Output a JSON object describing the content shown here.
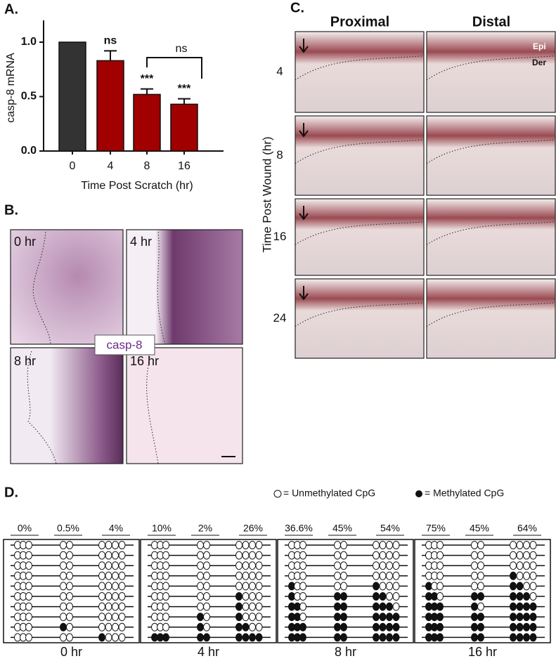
{
  "chart_data": {
    "type": "bar",
    "title": "A.",
    "categories": [
      "0",
      "4",
      "8",
      "16"
    ],
    "values": [
      1.0,
      0.83,
      0.52,
      0.43
    ],
    "errors": [
      0,
      0.09,
      0.05,
      0.05
    ],
    "colors": [
      "#333333",
      "#a00000",
      "#a00000",
      "#a00000"
    ],
    "ylim": [
      0,
      1.2
    ],
    "yticks": [
      {
        "value": 0,
        "label": "0.0"
      },
      {
        "value": 0.5,
        "label": "0.5"
      },
      {
        "value": 1.0,
        "label": "1.0"
      }
    ],
    "ylabel": "casp-8 mRNA",
    "xlabel": "Time Post Scratch (hr)",
    "bar_annotations": [
      null,
      "ns",
      "***",
      "***"
    ],
    "bracket_annotation": "ns"
  },
  "panel_b": {
    "title": "B.",
    "images": [
      "0 hr",
      "4 hr",
      "8 hr",
      "16 hr"
    ],
    "stain": "casp-8"
  },
  "panel_c": {
    "title": "C.",
    "columns": [
      "Proximal",
      "Distal"
    ],
    "rows": [
      "4",
      "8",
      "16",
      "24"
    ],
    "ylabel": "Time Post Wound (hr)",
    "layer_labels": [
      "Epi",
      "Der"
    ]
  },
  "panel_d": {
    "title": "D.",
    "legend": [
      "= Unmethylated CpG",
      "= Methylated CpG"
    ],
    "groups": [
      {
        "label": "0 hr",
        "percents": [
          "0%",
          "0.5%",
          "4%"
        ],
        "methylated": [
          [
            0,
            0,
            0,
            0,
            0,
            0,
            0,
            0,
            0,
            0
          ],
          [
            0,
            0,
            0,
            0,
            0,
            0,
            0,
            0,
            1,
            0
          ],
          [
            0,
            0,
            0,
            0,
            0,
            0,
            0,
            0,
            0,
            1
          ]
        ]
      },
      {
        "label": "4 hr",
        "percents": [
          "10%",
          "2%",
          "26%"
        ],
        "methylated": [
          [
            0,
            0,
            0,
            0,
            0,
            0,
            0,
            0,
            0,
            3
          ],
          [
            0,
            0,
            0,
            0,
            0,
            0,
            0,
            1,
            1,
            2
          ],
          [
            0,
            0,
            0,
            0,
            0,
            1,
            1,
            1,
            2,
            4
          ]
        ]
      },
      {
        "label": "8 hr",
        "percents": [
          "36.6%",
          "45%",
          "54%"
        ],
        "methylated": [
          [
            0,
            0,
            0,
            0,
            1,
            1,
            2,
            2,
            3,
            3
          ],
          [
            0,
            0,
            0,
            0,
            0,
            2,
            2,
            2,
            2,
            2
          ],
          [
            0,
            0,
            0,
            0,
            1,
            2,
            3,
            4,
            4,
            4
          ]
        ]
      },
      {
        "label": "16 hr",
        "percents": [
          "75%",
          "45%",
          "64%"
        ],
        "methylated": [
          [
            0,
            0,
            0,
            0,
            1,
            2,
            3,
            3,
            3,
            3
          ],
          [
            0,
            0,
            0,
            0,
            0,
            2,
            1,
            2,
            2,
            2
          ],
          [
            0,
            0,
            0,
            1,
            2,
            3,
            4,
            4,
            4,
            4
          ]
        ]
      }
    ]
  }
}
